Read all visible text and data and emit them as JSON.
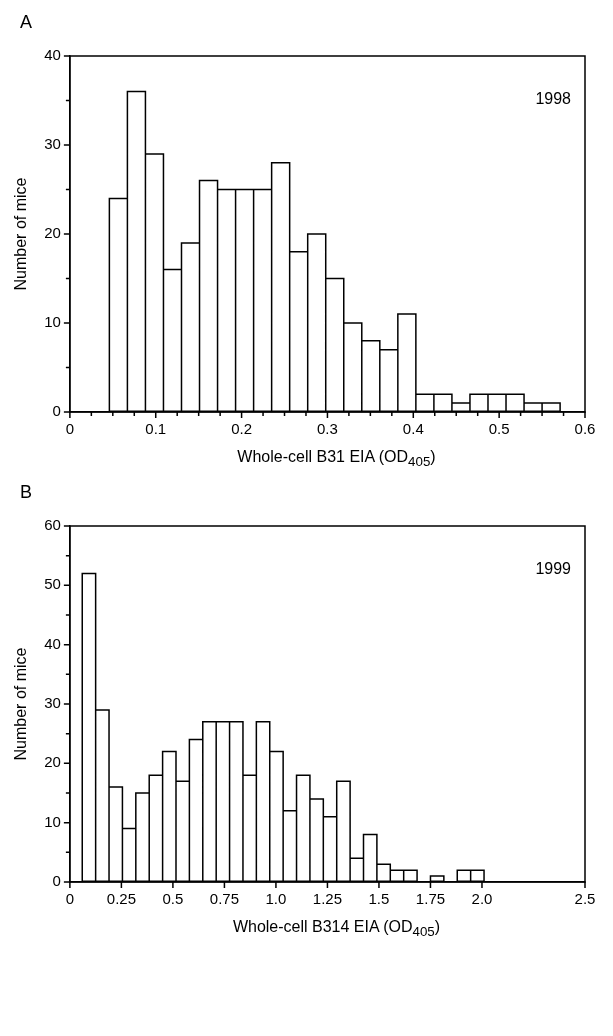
{
  "chart_data": [
    {
      "type": "histogram",
      "xlabel": "Whole-cell B31 EIA (OD$_{405}$)",
      "ylabel": "Number of mice",
      "annotations": [
        "A",
        "1998"
      ],
      "bins": [
        0.046,
        0.067,
        0.088,
        0.109,
        0.13,
        0.151,
        0.172,
        0.193,
        0.214,
        0.235,
        0.256,
        0.277,
        0.298,
        0.319,
        0.34,
        0.361,
        0.382,
        0.403,
        0.424,
        0.445,
        0.466,
        0.487,
        0.508,
        0.529,
        0.55,
        0.571
      ],
      "values": [
        24,
        36,
        29,
        16,
        19,
        26,
        25,
        25,
        25,
        28,
        18,
        20,
        15,
        10,
        8,
        7,
        11,
        2,
        2,
        1,
        2,
        2,
        2,
        1,
        1
      ],
      "color": "#ffffff",
      "xlim": [
        0,
        0.6
      ],
      "xticks": [
        0,
        {
          "value": 0.025,
          "label": null
        },
        {
          "value": 0.05,
          "label": null
        },
        {
          "value": 0.075,
          "label": null
        },
        0.1,
        {
          "value": 0.125,
          "label": null
        },
        {
          "value": 0.15,
          "label": null
        },
        {
          "value": 0.175,
          "label": null
        },
        0.2,
        {
          "value": 0.225,
          "label": null
        },
        {
          "value": 0.25,
          "label": null
        },
        {
          "value": 0.275,
          "label": null
        },
        0.3,
        {
          "value": 0.325,
          "label": null
        },
        {
          "value": 0.35,
          "label": null
        },
        {
          "value": 0.375,
          "label": null
        },
        0.4,
        {
          "value": 0.425,
          "label": null
        },
        {
          "value": 0.45,
          "label": null
        },
        {
          "value": 0.475,
          "label": null
        },
        0.5,
        {
          "value": 0.525,
          "label": null
        },
        {
          "value": 0.55,
          "label": null
        },
        {
          "value": 0.575,
          "label": null
        },
        0.6
      ],
      "ylim": [
        0,
        40
      ],
      "yticks": [
        0,
        {
          "value": 5,
          "label": null
        },
        10,
        {
          "value": 15,
          "label": null
        },
        20,
        {
          "value": 25,
          "label": null
        },
        30,
        {
          "value": 35,
          "label": null
        },
        40
      ],
      "grid": false,
      "legend": false
    },
    {
      "type": "histogram",
      "xlabel": "Whole-cell B314 EIA (OD$_{405}$)",
      "ylabel": "Number of mice",
      "annotations": [
        "B",
        "1999"
      ],
      "bins": [
        0.06,
        0.125,
        0.19,
        0.255,
        0.32,
        0.385,
        0.45,
        0.515,
        0.58,
        0.645,
        0.71,
        0.775,
        0.84,
        0.905,
        0.97,
        1.035,
        1.1,
        1.165,
        1.23,
        1.295,
        1.36,
        1.425,
        1.49,
        1.555,
        1.62,
        1.685,
        1.75,
        1.815,
        1.88,
        1.945,
        2.01
      ],
      "values": [
        52,
        29,
        16,
        9,
        15,
        18,
        22,
        17,
        24,
        27,
        27,
        27,
        18,
        27,
        22,
        12,
        18,
        14,
        11,
        17,
        4,
        8,
        3,
        2,
        2,
        0,
        1,
        0,
        2,
        2
      ],
      "color": "#ffffff",
      "xlim": [
        0,
        2.5
      ],
      "xticks": [
        0,
        0.25,
        0.5,
        0.75,
        {
          "value": 1,
          "label": "1.0"
        },
        1.25,
        1.5,
        1.75,
        {
          "value": 2,
          "label": "2.0"
        },
        2.5
      ],
      "ylim": [
        0,
        60
      ],
      "yticks": [
        0,
        {
          "value": 5,
          "label": null
        },
        10,
        {
          "value": 15,
          "label": null
        },
        20,
        {
          "value": 25,
          "label": null
        },
        30,
        {
          "value": 35,
          "label": null
        },
        40,
        {
          "value": 45,
          "label": null
        },
        50,
        {
          "value": 55,
          "label": null
        },
        60
      ],
      "grid": false,
      "legend": false
    }
  ]
}
